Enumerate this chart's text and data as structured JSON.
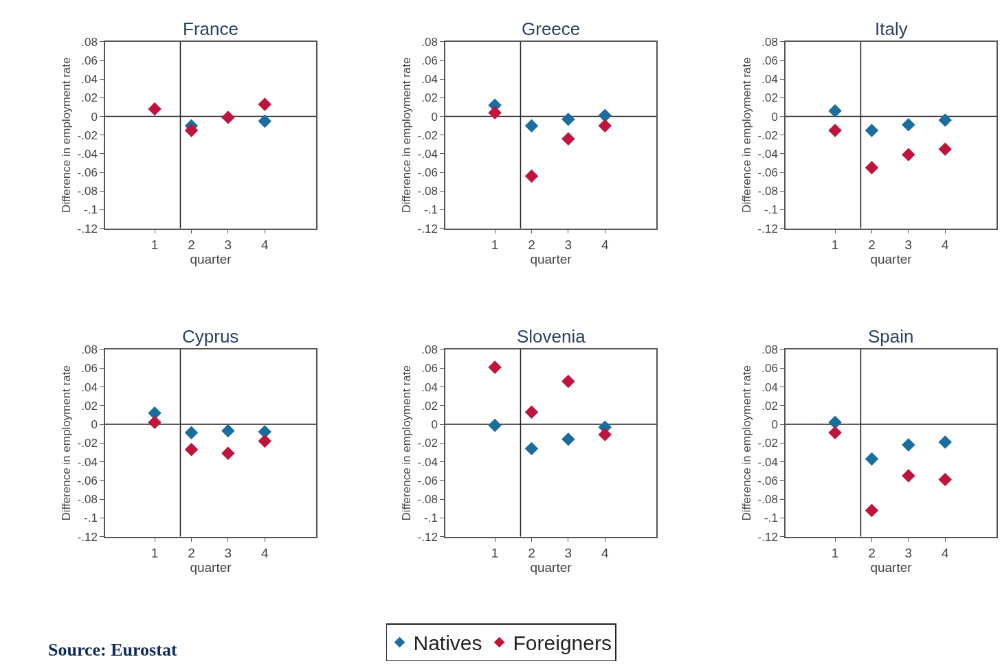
{
  "chart_data": [
    {
      "type": "scatter",
      "title": "France",
      "xlabel": "quarter",
      "ylabel": "Difference in employment rate",
      "x": [
        1,
        2,
        3,
        4
      ],
      "xlim": [
        -0.35,
        5.4
      ],
      "xticks": [
        1,
        2,
        3,
        4
      ],
      "ylim": [
        -0.12,
        0.08
      ],
      "yticks": [
        {
          "value": 0.08,
          "label": ".08"
        },
        {
          "value": 0.06,
          "label": ".06"
        },
        {
          "value": 0.04,
          "label": ".04"
        },
        {
          "value": 0.02,
          "label": ".02"
        },
        0,
        {
          "value": -0.02,
          "label": "-.02"
        },
        {
          "value": -0.04,
          "label": "-.04"
        },
        {
          "value": -0.06,
          "label": "-.06"
        },
        {
          "value": -0.08,
          "label": "-.08"
        },
        {
          "value": -0.1,
          "label": "-.1"
        },
        {
          "value": -0.12,
          "label": "-.12"
        }
      ],
      "marker": "diamond",
      "grid": false,
      "legend": "bottom",
      "ref_lines": [
        {
          "axis": "y",
          "value": 0
        },
        {
          "axis": "x",
          "value": 1.7
        }
      ],
      "series": [
        {
          "name": "Natives",
          "color": "#1b6e9c",
          "values": [
            null,
            -0.01,
            null,
            -0.005
          ]
        },
        {
          "name": "Foreigners",
          "color": "#c0143c",
          "values": [
            0.008,
            -0.015,
            -0.001,
            0.013
          ]
        }
      ]
    },
    {
      "type": "scatter",
      "title": "Greece",
      "xlabel": "quarter",
      "ylabel": "Difference in employment rate",
      "x": [
        1,
        2,
        3,
        4
      ],
      "xlim": [
        -0.35,
        5.4
      ],
      "xticks": [
        1,
        2,
        3,
        4
      ],
      "ylim": [
        -0.12,
        0.08
      ],
      "yticks": [
        {
          "value": 0.08,
          "label": ".08"
        },
        {
          "value": 0.06,
          "label": ".06"
        },
        {
          "value": 0.04,
          "label": ".04"
        },
        {
          "value": 0.02,
          "label": ".02"
        },
        0,
        {
          "value": -0.02,
          "label": "-.02"
        },
        {
          "value": -0.04,
          "label": "-.04"
        },
        {
          "value": -0.06,
          "label": "-.06"
        },
        {
          "value": -0.08,
          "label": "-.08"
        },
        {
          "value": -0.1,
          "label": "-.1"
        },
        {
          "value": -0.12,
          "label": "-.12"
        }
      ],
      "marker": "diamond",
      "grid": false,
      "ref_lines": [
        {
          "axis": "y",
          "value": 0
        },
        {
          "axis": "x",
          "value": 1.7
        }
      ],
      "series": [
        {
          "color": "#1b6e9c",
          "values": [
            0.012,
            -0.01,
            -0.003,
            0.001
          ]
        },
        {
          "color": "#c0143c",
          "values": [
            0.004,
            -0.064,
            -0.024,
            -0.01
          ]
        }
      ]
    },
    {
      "type": "scatter",
      "title": "Italy",
      "xlabel": "quarter",
      "ylabel": "Difference in employment rate",
      "x": [
        1,
        2,
        3,
        4
      ],
      "xlim": [
        -0.35,
        5.4
      ],
      "xticks": [
        1,
        2,
        3,
        4
      ],
      "ylim": [
        -0.12,
        0.08
      ],
      "yticks": [
        {
          "value": 0.08,
          "label": ".08"
        },
        {
          "value": 0.06,
          "label": ".06"
        },
        {
          "value": 0.04,
          "label": ".04"
        },
        {
          "value": 0.02,
          "label": ".02"
        },
        0,
        {
          "value": -0.02,
          "label": "-.02"
        },
        {
          "value": -0.04,
          "label": "-.04"
        },
        {
          "value": -0.06,
          "label": "-.06"
        },
        {
          "value": -0.08,
          "label": "-.08"
        },
        {
          "value": -0.1,
          "label": "-.1"
        },
        {
          "value": -0.12,
          "label": "-.12"
        }
      ],
      "marker": "diamond",
      "grid": false,
      "ref_lines": [
        {
          "axis": "y",
          "value": 0
        },
        {
          "axis": "x",
          "value": 1.7
        }
      ],
      "series": [
        {
          "color": "#1b6e9c",
          "values": [
            0.006,
            -0.015,
            -0.009,
            -0.004
          ]
        },
        {
          "color": "#c0143c",
          "values": [
            -0.015,
            -0.055,
            -0.041,
            -0.035
          ]
        }
      ]
    },
    {
      "type": "scatter",
      "title": "Cyprus",
      "xlabel": "quarter",
      "ylabel": "Difference in employment rate",
      "x": [
        1,
        2,
        3,
        4
      ],
      "xlim": [
        -0.35,
        5.4
      ],
      "xticks": [
        1,
        2,
        3,
        4
      ],
      "ylim": [
        -0.12,
        0.08
      ],
      "yticks": [
        {
          "value": 0.08,
          "label": ".08"
        },
        {
          "value": 0.06,
          "label": ".06"
        },
        {
          "value": 0.04,
          "label": ".04"
        },
        {
          "value": 0.02,
          "label": ".02"
        },
        0,
        {
          "value": -0.02,
          "label": "-.02"
        },
        {
          "value": -0.04,
          "label": "-.04"
        },
        {
          "value": -0.06,
          "label": "-.06"
        },
        {
          "value": -0.08,
          "label": "-.08"
        },
        {
          "value": -0.1,
          "label": "-.1"
        },
        {
          "value": -0.12,
          "label": "-.12"
        }
      ],
      "marker": "diamond",
      "grid": false,
      "ref_lines": [
        {
          "axis": "y",
          "value": 0
        },
        {
          "axis": "x",
          "value": 1.7
        }
      ],
      "series": [
        {
          "color": "#1b6e9c",
          "values": [
            0.012,
            -0.009,
            -0.007,
            -0.008
          ]
        },
        {
          "color": "#c0143c",
          "values": [
            0.002,
            -0.027,
            -0.031,
            -0.018
          ]
        }
      ]
    },
    {
      "type": "scatter",
      "title": "Slovenia",
      "xlabel": "quarter",
      "ylabel": "Difference in employment rate",
      "x": [
        1,
        2,
        3,
        4
      ],
      "xlim": [
        -0.35,
        5.4
      ],
      "xticks": [
        1,
        2,
        3,
        4
      ],
      "ylim": [
        -0.12,
        0.08
      ],
      "yticks": [
        {
          "value": 0.08,
          "label": ".08"
        },
        {
          "value": 0.06,
          "label": ".06"
        },
        {
          "value": 0.04,
          "label": ".04"
        },
        {
          "value": 0.02,
          "label": ".02"
        },
        0,
        {
          "value": -0.02,
          "label": "-.02"
        },
        {
          "value": -0.04,
          "label": "-.04"
        },
        {
          "value": -0.06,
          "label": "-.06"
        },
        {
          "value": -0.08,
          "label": "-.08"
        },
        {
          "value": -0.1,
          "label": "-.1"
        },
        {
          "value": -0.12,
          "label": "-.12"
        }
      ],
      "marker": "diamond",
      "grid": false,
      "ref_lines": [
        {
          "axis": "y",
          "value": 0
        },
        {
          "axis": "x",
          "value": 1.7
        }
      ],
      "series": [
        {
          "color": "#1b6e9c",
          "values": [
            -0.001,
            -0.026,
            -0.016,
            -0.003
          ]
        },
        {
          "color": "#c0143c",
          "values": [
            0.061,
            0.013,
            0.046,
            -0.011
          ]
        }
      ]
    },
    {
      "type": "scatter",
      "title": "Spain",
      "xlabel": "quarter",
      "ylabel": "Difference in employment rate",
      "x": [
        1,
        2,
        3,
        4
      ],
      "xlim": [
        -0.35,
        5.4
      ],
      "xticks": [
        1,
        2,
        3,
        4
      ],
      "ylim": [
        -0.12,
        0.08
      ],
      "yticks": [
        {
          "value": 0.08,
          "label": ".08"
        },
        {
          "value": 0.06,
          "label": ".06"
        },
        {
          "value": 0.04,
          "label": ".04"
        },
        {
          "value": 0.02,
          "label": ".02"
        },
        0,
        {
          "value": -0.02,
          "label": "-.02"
        },
        {
          "value": -0.04,
          "label": "-.04"
        },
        {
          "value": -0.06,
          "label": "-.06"
        },
        {
          "value": -0.08,
          "label": "-.08"
        },
        {
          "value": -0.1,
          "label": "-.1"
        },
        {
          "value": -0.12,
          "label": "-.12"
        }
      ],
      "marker": "diamond",
      "grid": false,
      "ref_lines": [
        {
          "axis": "y",
          "value": 0
        },
        {
          "axis": "x",
          "value": 1.7
        }
      ],
      "annotations": [
        "Source: Eurostat"
      ],
      "series": [
        {
          "color": "#1b6e9c",
          "values": [
            0.002,
            -0.037,
            -0.022,
            -0.019
          ]
        },
        {
          "color": "#c0143c",
          "values": [
            -0.009,
            -0.092,
            -0.055,
            -0.059
          ]
        }
      ]
    }
  ]
}
